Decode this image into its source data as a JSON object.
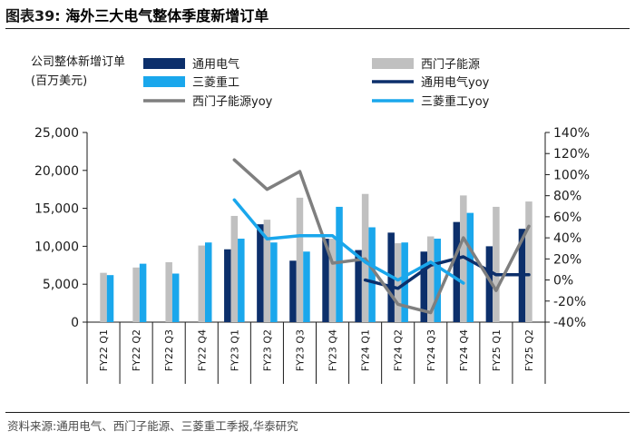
{
  "figure": {
    "title_num": "图表39:",
    "title_text": "海外三大电气整体季度新增订单",
    "source": "资料来源:通用电气、西门子能源、三菱重工季报,华泰研究"
  },
  "chart_data": {
    "type": "bar",
    "title": "",
    "ylabel": "公司整体新增订单(百万美元)",
    "categories": [
      "FY22 Q1",
      "FY22 Q2",
      "FY22 Q3",
      "FY22 Q4",
      "FY23 Q1",
      "FY23 Q2",
      "FY23 Q3",
      "FY23 Q4",
      "FY24 Q1",
      "FY24 Q2",
      "FY24 Q3",
      "FY24 Q4",
      "FY25 Q1",
      "FY25 Q2"
    ],
    "ylim": [
      0,
      25000
    ],
    "yticks": [
      "0",
      "5,000",
      "10,000",
      "15,000",
      "20,000",
      "25,000"
    ],
    "ytick_values": [
      0,
      5000,
      10000,
      15000,
      20000,
      25000
    ],
    "y2lim": [
      -40,
      140
    ],
    "y2ticks": [
      "-40%",
      "-20%",
      "0%",
      "20%",
      "40%",
      "60%",
      "80%",
      "100%",
      "120%",
      "140%"
    ],
    "y2tick_values": [
      -40,
      -20,
      0,
      20,
      40,
      60,
      80,
      100,
      120,
      140
    ],
    "legend_position": "top",
    "series": [
      {
        "name": "通用电气",
        "kind": "bar",
        "axis": "left",
        "color": "#0c2f6b",
        "values": [
          null,
          null,
          null,
          null,
          9600,
          12900,
          8100,
          11000,
          9500,
          11800,
          9300,
          13200,
          10000,
          12300
        ]
      },
      {
        "name": "西门子能源",
        "kind": "bar",
        "axis": "left",
        "color": "#c0c0c0",
        "values": [
          6500,
          7200,
          7900,
          10100,
          14000,
          13500,
          16400,
          11000,
          16900,
          10400,
          11300,
          16700,
          15200,
          15900
        ]
      },
      {
        "name": "三菱重工",
        "kind": "bar",
        "axis": "left",
        "color": "#1aa7ec",
        "values": [
          6200,
          7700,
          6400,
          10500,
          11000,
          10500,
          9300,
          15200,
          12500,
          10500,
          11000,
          14400,
          null,
          null
        ]
      },
      {
        "name": "通用电气yoy",
        "kind": "line",
        "axis": "right",
        "color": "#0c2f6b",
        "values": [
          null,
          null,
          null,
          null,
          null,
          null,
          null,
          null,
          0,
          -8,
          14,
          22,
          5,
          5
        ]
      },
      {
        "name": "西门子能源yoy",
        "kind": "line",
        "axis": "right",
        "color": "#7f7f7f",
        "values": [
          null,
          null,
          null,
          null,
          114,
          86,
          103,
          16,
          20,
          -23,
          -31,
          40,
          -10,
          51
        ]
      },
      {
        "name": "三菱重工yoy",
        "kind": "line",
        "axis": "right",
        "color": "#1aa7ec",
        "values": [
          null,
          null,
          null,
          null,
          76,
          39,
          42,
          42,
          17,
          0,
          17,
          -3,
          null,
          null
        ]
      }
    ]
  }
}
